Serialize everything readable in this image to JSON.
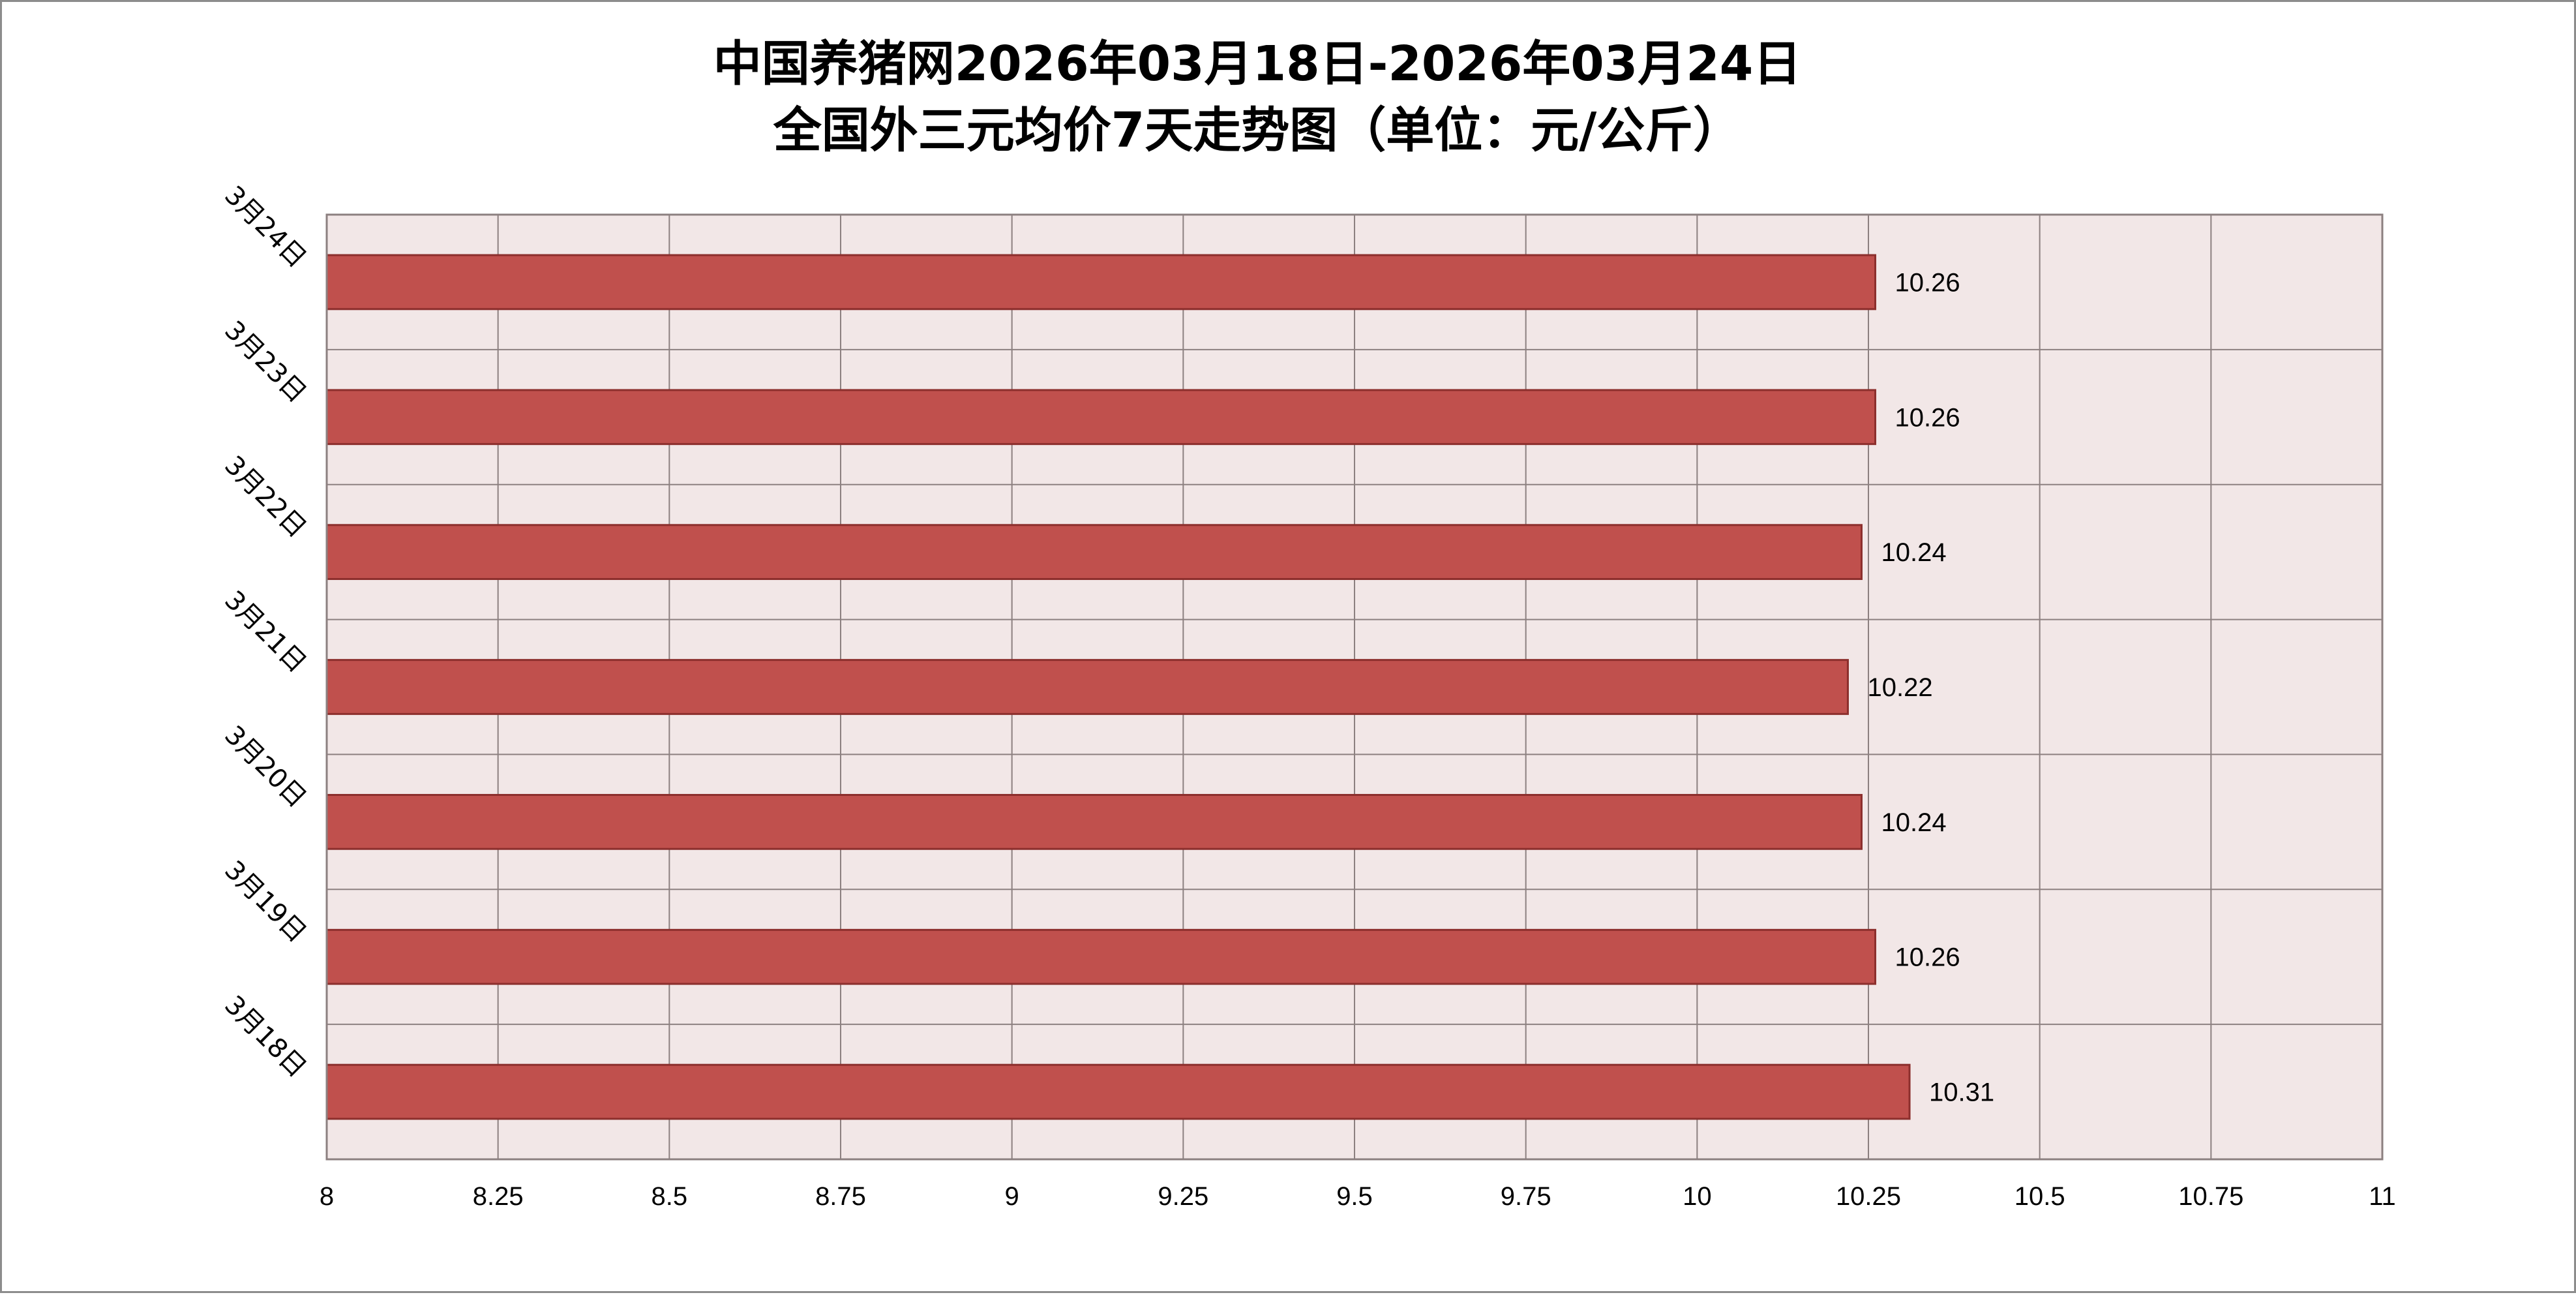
{
  "chart_data": {
    "type": "bar",
    "orientation": "horizontal",
    "title_line1": "中国养猪网2026年03月18日-2026年03月24日",
    "title_line2": "全国外三元均价7天走势图（单位：元/公斤）",
    "categories": [
      "3月18日",
      "3月19日",
      "3月20日",
      "3月21日",
      "3月22日",
      "3月23日",
      "3月24日"
    ],
    "values": [
      10.31,
      10.26,
      10.24,
      10.22,
      10.24,
      10.26,
      10.26
    ],
    "value_labels": [
      "10.31",
      "10.26",
      "10.24",
      "10.22",
      "10.24",
      "10.26",
      "10.26"
    ],
    "xlim": [
      8,
      11
    ],
    "x_ticks": [
      8,
      8.25,
      8.5,
      8.75,
      9,
      9.25,
      9.5,
      9.75,
      10,
      10.25,
      10.5,
      10.75,
      11
    ],
    "x_tick_labels": [
      "8",
      "8.25",
      "8.5",
      "8.75",
      "9",
      "9.25",
      "9.5",
      "9.75",
      "10",
      "10.25",
      "10.5",
      "10.75",
      "11"
    ],
    "xlabel": "",
    "ylabel": "",
    "grid": true,
    "legend": "none",
    "colors": {
      "bar_fill": "#c0504d",
      "bar_stroke": "#8c2f2d",
      "plot_background": "#f2e7e7",
      "grid_line": "#8c8080",
      "frame": "#8c8c8c"
    }
  }
}
